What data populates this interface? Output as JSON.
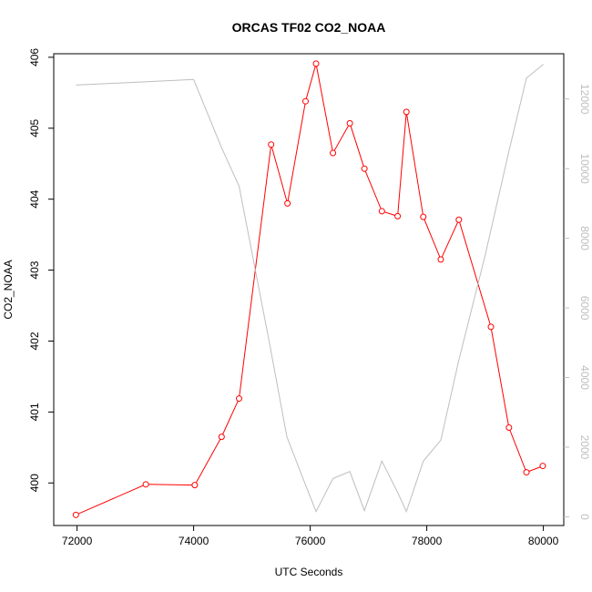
{
  "chart_data": {
    "type": "line",
    "title": "ORCAS TF02 CO2_NOAA",
    "xlabel": "UTC Seconds",
    "ylabel": "CO2_NOAA",
    "xlim": [
      71600,
      80350
    ],
    "ylim": [
      399.4,
      406.05
    ],
    "y2lim": [
      -250,
      13300
    ],
    "x_ticks": [
      72000,
      74000,
      76000,
      78000,
      80000
    ],
    "y_ticks": [
      400,
      401,
      402,
      403,
      404,
      405,
      406
    ],
    "y2_ticks": [
      0,
      2000,
      4000,
      6000,
      8000,
      10000,
      12000
    ],
    "grid": false,
    "series": [
      {
        "axis": "left",
        "color": "#ff0000",
        "marker": "open-circle",
        "x": [
          71980,
          73180,
          74020,
          74480,
          74780,
          75330,
          75610,
          75920,
          76100,
          76390,
          76680,
          76930,
          77230,
          77500,
          77650,
          77940,
          78240,
          78550,
          79100,
          79410,
          79710,
          79990
        ],
        "values": [
          399.55,
          399.98,
          399.97,
          400.65,
          401.19,
          404.77,
          403.94,
          405.38,
          405.91,
          404.65,
          405.07,
          404.43,
          403.83,
          403.76,
          405.23,
          403.75,
          403.15,
          403.71,
          402.2,
          400.78,
          400.15,
          400.24
        ]
      },
      {
        "axis": "right",
        "color": "#bebebe",
        "marker": "none",
        "x": [
          71980,
          74000,
          74480,
          74780,
          75300,
          75600,
          75900,
          76100,
          76390,
          76680,
          76930,
          77230,
          77500,
          77650,
          77940,
          78240,
          78550,
          79000,
          79410,
          79710,
          80000
        ],
        "values": [
          12400,
          12560,
          10600,
          9500,
          5000,
          2300,
          1000,
          150,
          1100,
          1300,
          180,
          1600,
          700,
          150,
          1600,
          2200,
          4500,
          7500,
          10500,
          12600,
          13000
        ]
      }
    ]
  },
  "colors": {
    "series_co2": "#ff0000",
    "series_altitude": "#bebebe",
    "right_axis": "#bebebe"
  }
}
